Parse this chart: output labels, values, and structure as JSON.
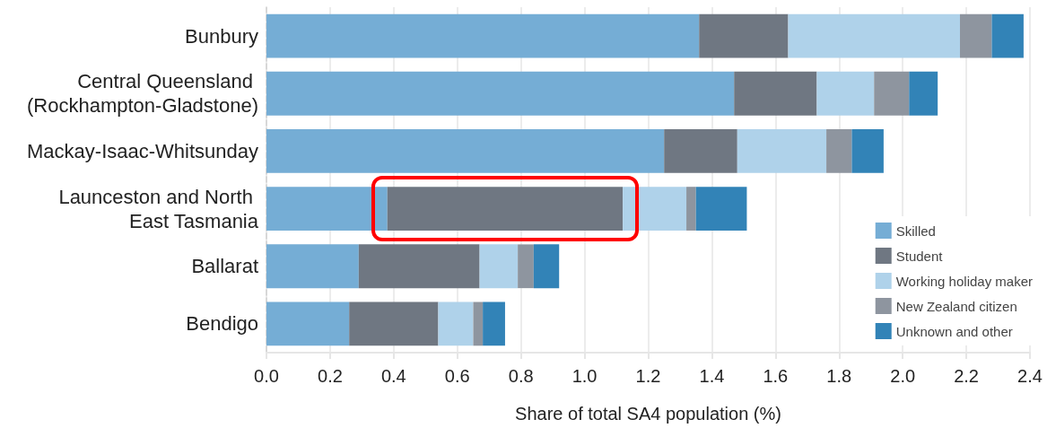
{
  "chart_data": {
    "type": "bar",
    "orientation": "horizontal",
    "stacked": true,
    "categories": [
      "Bunbury",
      "Central Queensland (Rockhampton-Gladstone)",
      "Mackay-Isaac-Whitsunday",
      "Launceston and North East Tasmania",
      "Ballarat",
      "Bendigo"
    ],
    "series": [
      {
        "name": "Skilled",
        "color": "#75add5",
        "values": [
          1.36,
          1.47,
          1.25,
          0.38,
          0.29,
          0.26
        ]
      },
      {
        "name": "Student",
        "color": "#6f7782",
        "values": [
          0.28,
          0.26,
          0.23,
          0.74,
          0.38,
          0.28
        ]
      },
      {
        "name": "Working holiday maker",
        "color": "#afd2ea",
        "values": [
          0.54,
          0.18,
          0.28,
          0.2,
          0.12,
          0.11
        ]
      },
      {
        "name": "New Zealand citizen",
        "color": "#8e959f",
        "values": [
          0.1,
          0.11,
          0.08,
          0.03,
          0.05,
          0.03
        ]
      },
      {
        "name": "Unknown and other",
        "color": "#3283b7",
        "values": [
          0.1,
          0.09,
          0.1,
          0.16,
          0.08,
          0.07
        ]
      }
    ],
    "xlabel": "Share of total SA4 population (%)",
    "xlim": [
      0,
      2.4
    ],
    "xticks": [
      {
        "value": 0,
        "label": "0.0"
      },
      0.2,
      0.4,
      0.6,
      0.8,
      {
        "value": 1,
        "label": "1.0"
      },
      1.2,
      1.4,
      1.6,
      1.8,
      {
        "value": 2,
        "label": "2.0"
      },
      2.2,
      2.4
    ],
    "grid": "x",
    "legend": "bottom right"
  }
}
